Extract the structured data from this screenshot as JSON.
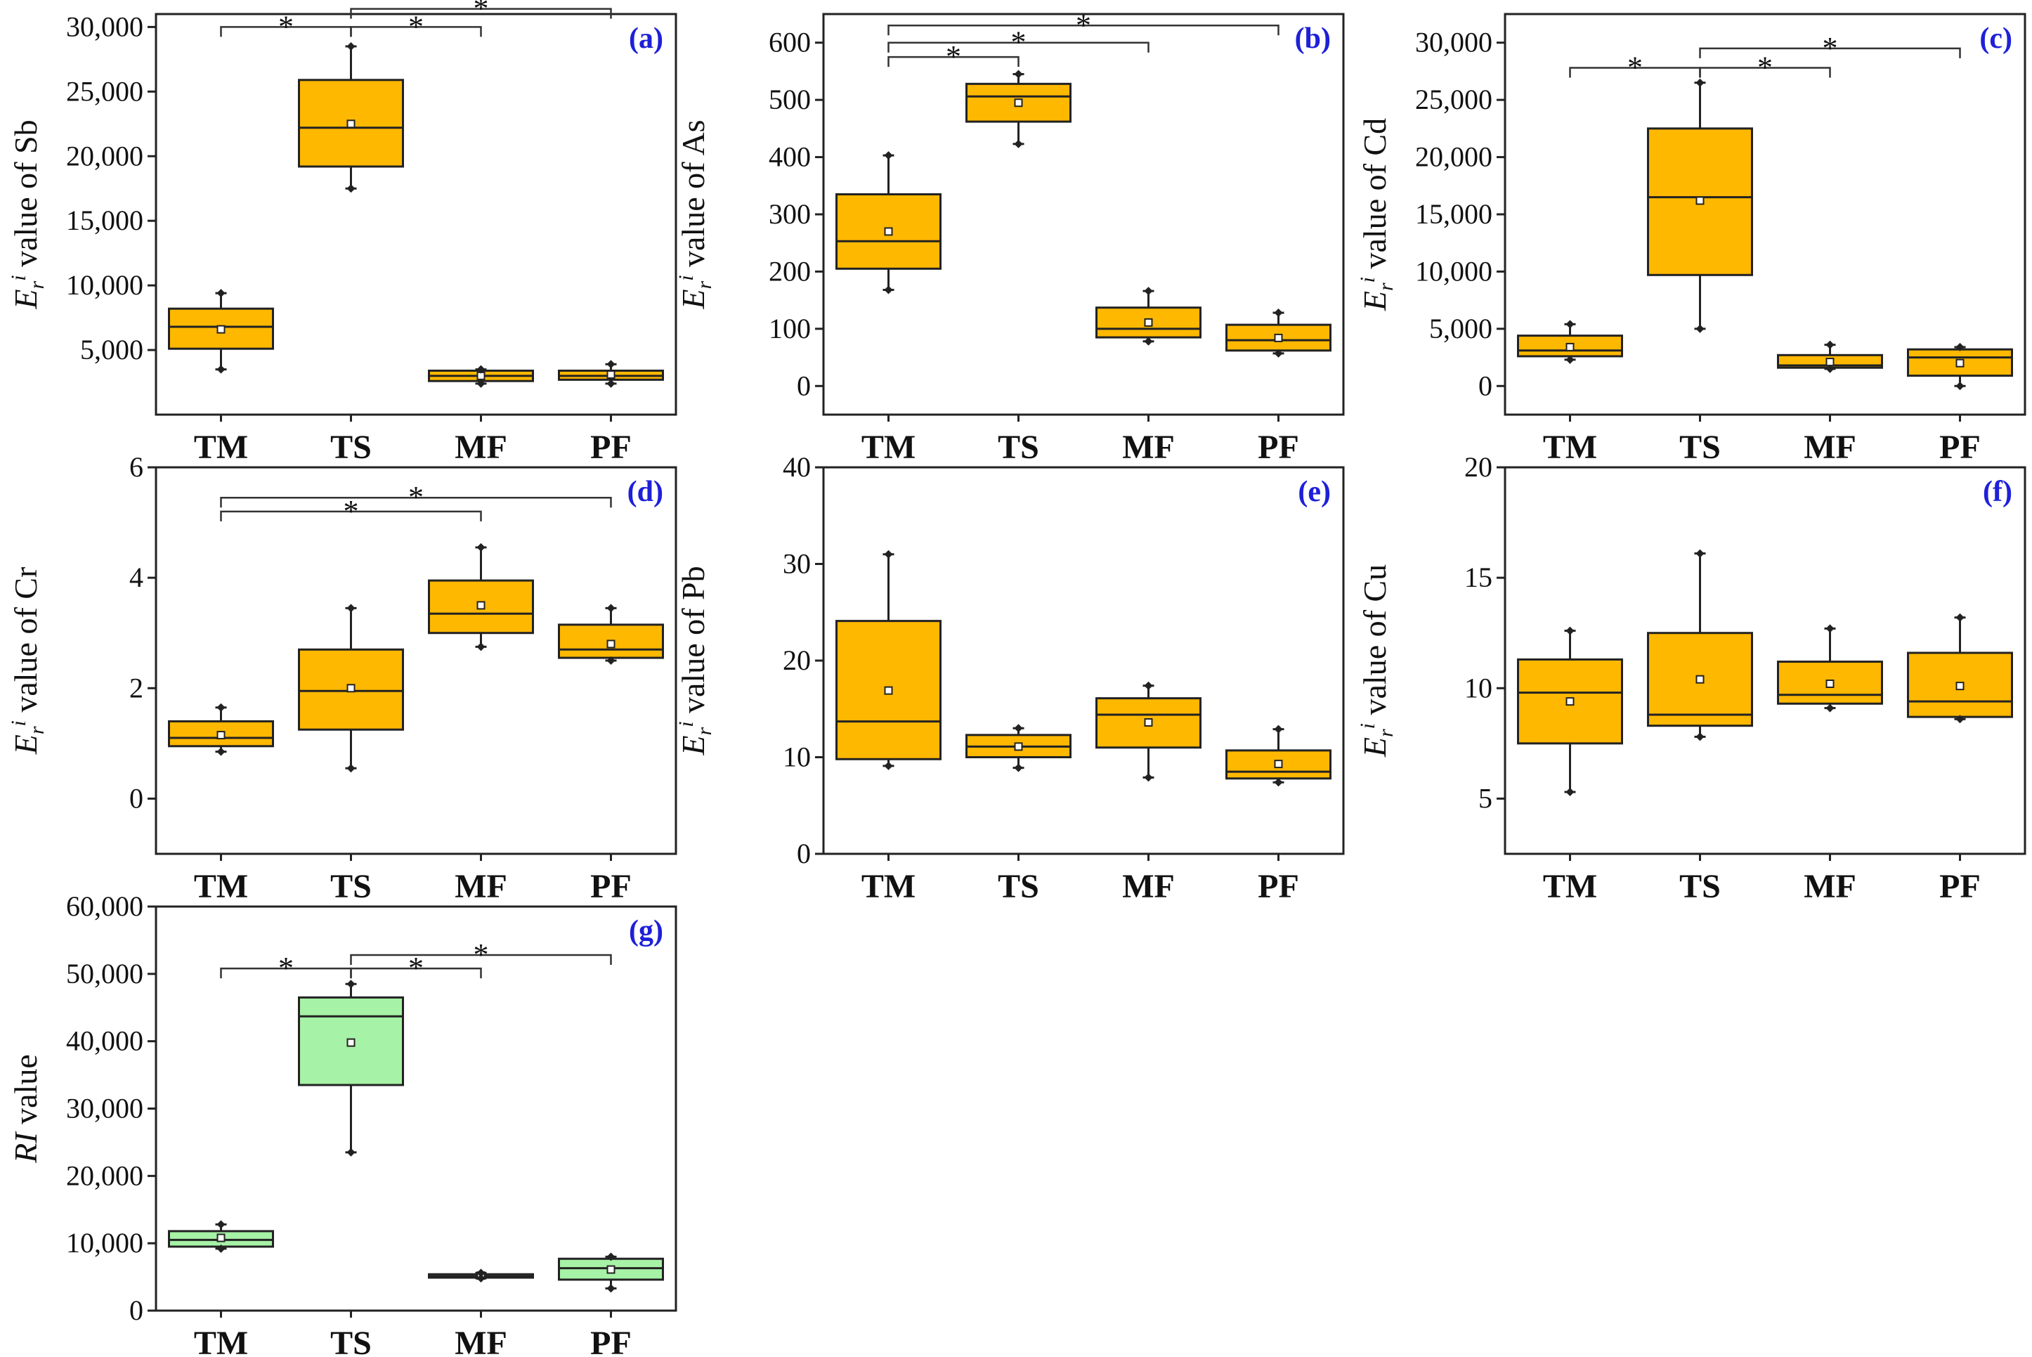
{
  "figure": {
    "categories": [
      "TM",
      "TS",
      "MF",
      "PF"
    ]
  },
  "colors": {
    "orange": "#FFB800",
    "green": "#A6F2A6",
    "tag": "#1E20D8"
  },
  "chart_data": [
    {
      "id": "a",
      "type": "boxplot",
      "tag": "(a)",
      "ylabel_sym": "E",
      "ylabel_sub": "r",
      "ylabel_sup": "i",
      "ylabel_text": " value of Sb",
      "ylim": [
        0,
        31000
      ],
      "ticks": [
        5000,
        10000,
        15000,
        20000,
        25000,
        30000
      ],
      "tick_labels": [
        "5,000",
        "10,000",
        "15,000",
        "20,000",
        "25,000",
        "30,000"
      ],
      "color": "orange",
      "categories": [
        "TM",
        "TS",
        "MF",
        "PF"
      ],
      "boxes": [
        {
          "min": 3500,
          "q1": 5100,
          "median": 6800,
          "q3": 8200,
          "max": 9400,
          "mean": 6600
        },
        {
          "min": 17500,
          "q1": 19200,
          "median": 22200,
          "q3": 25900,
          "max": 28500,
          "mean": 22500
        },
        {
          "min": 2400,
          "q1": 2600,
          "median": 3000,
          "q3": 3400,
          "max": 3500,
          "mean": 3000
        },
        {
          "min": 2400,
          "q1": 2700,
          "median": 3000,
          "q3": 3400,
          "max": 3900,
          "mean": 3100
        }
      ],
      "significance": [
        {
          "from": 0,
          "to": 1,
          "y": 30000,
          "label": "*"
        },
        {
          "from": 1,
          "to": 2,
          "y": 30000,
          "label": "*"
        },
        {
          "from": 1,
          "to": 3,
          "y": 31400,
          "label": "*"
        }
      ]
    },
    {
      "id": "b",
      "type": "boxplot",
      "tag": "(b)",
      "ylabel_sym": "E",
      "ylabel_sub": "r",
      "ylabel_sup": "i",
      "ylabel_text": " value of As",
      "ylim": [
        -50,
        650
      ],
      "ticks": [
        0,
        100,
        200,
        300,
        400,
        500,
        600
      ],
      "tick_labels": [
        "0",
        "100",
        "200",
        "300",
        "400",
        "500",
        "600"
      ],
      "color": "orange",
      "categories": [
        "TM",
        "TS",
        "MF",
        "PF"
      ],
      "boxes": [
        {
          "min": 168,
          "q1": 205,
          "median": 253,
          "q3": 335,
          "max": 403,
          "mean": 270
        },
        {
          "min": 423,
          "q1": 462,
          "median": 506,
          "q3": 528,
          "max": 545,
          "mean": 495
        },
        {
          "min": 78,
          "q1": 85,
          "median": 100,
          "q3": 137,
          "max": 166,
          "mean": 111
        },
        {
          "min": 57,
          "q1": 62,
          "median": 80,
          "q3": 107,
          "max": 128,
          "mean": 84
        }
      ],
      "significance": [
        {
          "from": 0,
          "to": 1,
          "y": 575,
          "label": "*"
        },
        {
          "from": 0,
          "to": 2,
          "y": 600,
          "label": "*"
        },
        {
          "from": 0,
          "to": 3,
          "y": 630,
          "label": "*"
        }
      ]
    },
    {
      "id": "c",
      "type": "boxplot",
      "tag": "(c)",
      "ylabel_sym": "E",
      "ylabel_sub": "r",
      "ylabel_sup": "i",
      "ylabel_text": " value of Cd",
      "ylim": [
        -2500,
        32500
      ],
      "ticks": [
        0,
        5000,
        10000,
        15000,
        20000,
        25000,
        30000
      ],
      "tick_labels": [
        "0",
        "5,000",
        "10,000",
        "15,000",
        "20,000",
        "25,000",
        "30,000"
      ],
      "color": "orange",
      "categories": [
        "TM",
        "TS",
        "MF",
        "PF"
      ],
      "boxes": [
        {
          "min": 2300,
          "q1": 2600,
          "median": 3100,
          "q3": 4400,
          "max": 5400,
          "mean": 3400
        },
        {
          "min": 5000,
          "q1": 9700,
          "median": 16500,
          "q3": 22500,
          "max": 26500,
          "mean": 16200
        },
        {
          "min": 1500,
          "q1": 1600,
          "median": 1800,
          "q3": 2700,
          "max": 3600,
          "mean": 2100
        },
        {
          "min": 0,
          "q1": 900,
          "median": 2500,
          "q3": 3200,
          "max": 3400,
          "mean": 2000
        }
      ],
      "significance": [
        {
          "from": 0,
          "to": 1,
          "y": 27800,
          "label": "*"
        },
        {
          "from": 1,
          "to": 2,
          "y": 27800,
          "label": "*"
        },
        {
          "from": 1,
          "to": 3,
          "y": 29500,
          "label": "*"
        }
      ]
    },
    {
      "id": "d",
      "type": "boxplot",
      "tag": "(d)",
      "ylabel_sym": "E",
      "ylabel_sub": "r",
      "ylabel_sup": "i",
      "ylabel_text": " value of Cr",
      "ylim": [
        -1,
        6
      ],
      "ticks": [
        0,
        2,
        4,
        6
      ],
      "tick_labels": [
        "0",
        "2",
        "4",
        "6"
      ],
      "color": "orange",
      "categories": [
        "TM",
        "TS",
        "MF",
        "PF"
      ],
      "boxes": [
        {
          "min": 0.85,
          "q1": 0.95,
          "median": 1.1,
          "q3": 1.4,
          "max": 1.65,
          "mean": 1.15
        },
        {
          "min": 0.55,
          "q1": 1.25,
          "median": 1.95,
          "q3": 2.7,
          "max": 3.45,
          "mean": 2.0
        },
        {
          "min": 2.75,
          "q1": 3.0,
          "median": 3.35,
          "q3": 3.95,
          "max": 4.55,
          "mean": 3.5
        },
        {
          "min": 2.5,
          "q1": 2.55,
          "median": 2.7,
          "q3": 3.15,
          "max": 3.45,
          "mean": 2.8
        }
      ],
      "significance": [
        {
          "from": 0,
          "to": 2,
          "y": 5.2,
          "label": "*"
        },
        {
          "from": 0,
          "to": 3,
          "y": 5.45,
          "label": "*"
        }
      ]
    },
    {
      "id": "e",
      "type": "boxplot",
      "tag": "(e)",
      "ylabel_sym": "E",
      "ylabel_sub": "r",
      "ylabel_sup": "i",
      "ylabel_text": " value of Pb",
      "ylim": [
        0,
        40
      ],
      "ticks": [
        0,
        10,
        20,
        30,
        40
      ],
      "tick_labels": [
        "0",
        "10",
        "20",
        "30",
        "40"
      ],
      "color": "orange",
      "categories": [
        "TM",
        "TS",
        "MF",
        "PF"
      ],
      "boxes": [
        {
          "min": 9.1,
          "q1": 9.8,
          "median": 13.7,
          "q3": 24.1,
          "max": 31.0,
          "mean": 16.9
        },
        {
          "min": 8.9,
          "q1": 10.0,
          "median": 11.1,
          "q3": 12.3,
          "max": 13.0,
          "mean": 11.1
        },
        {
          "min": 7.9,
          "q1": 11.0,
          "median": 14.4,
          "q3": 16.1,
          "max": 17.4,
          "mean": 13.6
        },
        {
          "min": 7.4,
          "q1": 7.8,
          "median": 8.5,
          "q3": 10.7,
          "max": 12.9,
          "mean": 9.3
        }
      ],
      "significance": []
    },
    {
      "id": "f",
      "type": "boxplot",
      "tag": "(f)",
      "ylabel_sym": "E",
      "ylabel_sub": "r",
      "ylabel_sup": "i",
      "ylabel_text": " value of Cu",
      "ylim": [
        2.5,
        20
      ],
      "ticks": [
        5,
        10,
        15,
        20
      ],
      "tick_labels": [
        "5",
        "10",
        "15",
        "20"
      ],
      "color": "orange",
      "categories": [
        "TM",
        "TS",
        "MF",
        "PF"
      ],
      "boxes": [
        {
          "min": 5.3,
          "q1": 7.5,
          "median": 9.8,
          "q3": 11.3,
          "max": 12.6,
          "mean": 9.4
        },
        {
          "min": 7.8,
          "q1": 8.3,
          "median": 8.8,
          "q3": 12.5,
          "max": 16.1,
          "mean": 10.4
        },
        {
          "min": 9.1,
          "q1": 9.3,
          "median": 9.7,
          "q3": 11.2,
          "max": 12.7,
          "mean": 10.2
        },
        {
          "min": 8.6,
          "q1": 8.7,
          "median": 9.4,
          "q3": 11.6,
          "max": 13.2,
          "mean": 10.1
        }
      ],
      "significance": []
    },
    {
      "id": "g",
      "type": "boxplot",
      "tag": "(g)",
      "ylabel_sym": "RI",
      "ylabel_sub": "",
      "ylabel_sup": "",
      "ylabel_text": " value",
      "ylim": [
        0,
        60000
      ],
      "ticks": [
        0,
        10000,
        20000,
        30000,
        40000,
        50000,
        60000
      ],
      "tick_labels": [
        "0",
        "10,000",
        "20,000",
        "30,000",
        "40,000",
        "50,000",
        "60,000"
      ],
      "color": "green",
      "categories": [
        "TM",
        "TS",
        "MF",
        "PF"
      ],
      "boxes": [
        {
          "min": 9200,
          "q1": 9500,
          "median": 10500,
          "q3": 11800,
          "max": 12800,
          "mean": 10800
        },
        {
          "min": 23500,
          "q1": 33500,
          "median": 43700,
          "q3": 46500,
          "max": 48500,
          "mean": 39800
        },
        {
          "min": 4800,
          "q1": 4900,
          "median": 5100,
          "q3": 5400,
          "max": 5600,
          "mean": 5200
        },
        {
          "min": 3300,
          "q1": 4600,
          "median": 6300,
          "q3": 7700,
          "max": 8000,
          "mean": 6100
        }
      ],
      "significance": [
        {
          "from": 0,
          "to": 1,
          "y": 50800,
          "label": "*"
        },
        {
          "from": 1,
          "to": 2,
          "y": 50800,
          "label": "*"
        },
        {
          "from": 1,
          "to": 3,
          "y": 52800,
          "label": "*"
        }
      ]
    }
  ]
}
